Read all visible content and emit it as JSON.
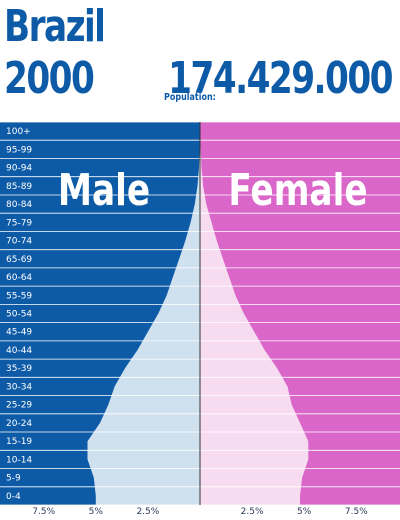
{
  "header": {
    "country": "Brazil",
    "year": "2000",
    "population_label": "Population:",
    "population_value": "174.429.000"
  },
  "colors": {
    "male_bg": "#0d5aa7",
    "male_fill": "#cfe0ef",
    "female_bg": "#d966c8",
    "female_fill": "#f7dcf1"
  },
  "chart_data": {
    "type": "bar",
    "orientation": "horizontal",
    "layout": "population-pyramid",
    "categories": [
      "0-4",
      "5-9",
      "10-14",
      "15-19",
      "20-24",
      "25-29",
      "30-34",
      "35-39",
      "40-44",
      "45-49",
      "50-54",
      "55-59",
      "60-64",
      "65-69",
      "70-74",
      "75-79",
      "80-84",
      "85-89",
      "90-94",
      "95-99",
      "100+"
    ],
    "series": [
      {
        "name": "Male",
        "values": [
          5.0,
          5.1,
          5.4,
          5.4,
          4.8,
          4.4,
          4.1,
          3.6,
          3.0,
          2.5,
          2.0,
          1.6,
          1.3,
          1.0,
          0.7,
          0.45,
          0.25,
          0.12,
          0.05,
          0.02,
          0.01
        ]
      },
      {
        "name": "Female",
        "values": [
          4.8,
          4.9,
          5.2,
          5.2,
          4.8,
          4.4,
          4.2,
          3.7,
          3.1,
          2.6,
          2.1,
          1.7,
          1.4,
          1.1,
          0.8,
          0.55,
          0.3,
          0.15,
          0.07,
          0.03,
          0.01
        ]
      }
    ],
    "x_ticks_left": [
      "7.5%",
      "5%",
      "2.5%"
    ],
    "x_ticks_right": [
      "2.5%",
      "5%",
      "7.5%"
    ],
    "x_tick_values": [
      7.5,
      5,
      2.5
    ],
    "xlim": [
      0,
      9.6
    ],
    "grid": true
  }
}
